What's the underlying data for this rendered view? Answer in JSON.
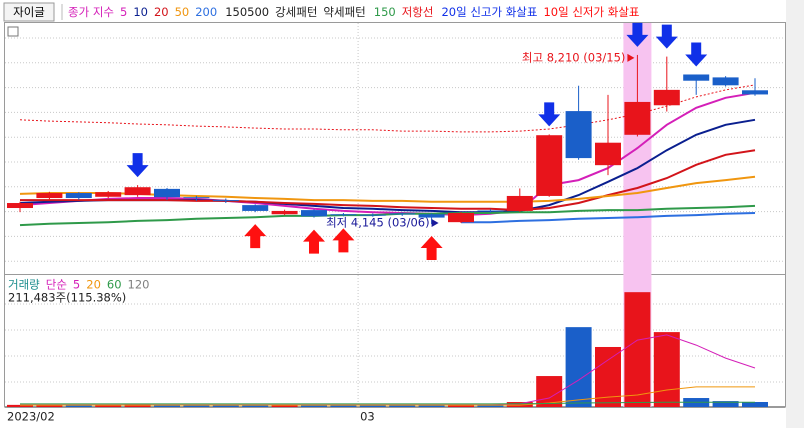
{
  "title": "자이글",
  "chart_data": [
    {
      "type": "candlestick",
      "legend_label": "종가 지수",
      "categories": [
        "2023/02",
        null,
        null,
        null,
        null,
        null,
        null,
        null,
        null,
        null,
        null,
        null,
        "03",
        null,
        null,
        null,
        null,
        null,
        null,
        null,
        null,
        null,
        null,
        null,
        null,
        null
      ],
      "open": [
        4530,
        4770,
        4890,
        4800,
        4840,
        4990,
        4790,
        4720,
        4600,
        4380,
        4480,
        4380,
        4370,
        4400,
        4380,
        4190,
        4470,
        4460,
        4820,
        6860,
        5560,
        6290,
        7000,
        7740,
        7670,
        7360
      ],
      "high": [
        4680,
        4920,
        4910,
        4940,
        5080,
        5010,
        4820,
        4760,
        4620,
        4490,
        4500,
        4410,
        4400,
        4420,
        4400,
        4430,
        4500,
        5000,
        6300,
        7470,
        7250,
        8210,
        8170,
        7740,
        7700,
        7650
      ],
      "low": [
        4430,
        4720,
        4730,
        4760,
        4800,
        4720,
        4700,
        4650,
        4430,
        4360,
        4300,
        4330,
        4320,
        4340,
        4145,
        4170,
        4420,
        4440,
        4800,
        5690,
        5320,
        6250,
        6850,
        7250,
        7450,
        7230
      ],
      "close": [
        4650,
        4890,
        4770,
        4910,
        5030,
        4790,
        4770,
        4700,
        4460,
        4460,
        4330,
        4360,
        4350,
        4380,
        4300,
        4410,
        4460,
        4820,
        6280,
        5730,
        6100,
        7080,
        7370,
        7590,
        7480,
        7260
      ],
      "up_color": "#e8141b",
      "down_color": "#1a5fc9",
      "ylim": [
        3040,
        9290
      ],
      "highlight_color": "#f7c3f0",
      "series": [
        {
          "name": "5",
          "color": "#d41fb8",
          "values": [
            4600,
            4650,
            4700,
            4750,
            4770,
            4770,
            4750,
            4700,
            4650,
            4580,
            4510,
            4460,
            4430,
            4410,
            4390,
            4360,
            4390,
            4480,
            5080,
            5200,
            5490,
            5970,
            6530,
            6940,
            7180,
            7300
          ]
        },
        {
          "name": "10",
          "color": "#0a1f8f",
          "values": [
            4650,
            4680,
            4700,
            4720,
            4720,
            4720,
            4720,
            4700,
            4680,
            4630,
            4580,
            4530,
            4510,
            4480,
            4460,
            4430,
            4430,
            4460,
            4600,
            4840,
            5160,
            5490,
            5920,
            6290,
            6530,
            6650
          ]
        },
        {
          "name": "20",
          "color": "#d2141a",
          "values": [
            4720,
            4720,
            4720,
            4720,
            4720,
            4720,
            4700,
            4700,
            4680,
            4650,
            4630,
            4600,
            4580,
            4550,
            4530,
            4510,
            4510,
            4480,
            4530,
            4650,
            4840,
            5010,
            5250,
            5570,
            5810,
            5920
          ]
        },
        {
          "name": "50",
          "color": "#f0960f",
          "values": [
            4870,
            4890,
            4890,
            4890,
            4870,
            4840,
            4820,
            4800,
            4770,
            4750,
            4720,
            4720,
            4700,
            4700,
            4680,
            4680,
            4680,
            4680,
            4700,
            4750,
            4820,
            4890,
            5010,
            5130,
            5200,
            5280
          ]
        },
        {
          "name": "200",
          "color": "#2d6fe0",
          "values": [
            null,
            null,
            null,
            null,
            null,
            null,
            null,
            null,
            null,
            null,
            null,
            null,
            null,
            null,
            null,
            4190,
            4190,
            4220,
            4240,
            4270,
            4290,
            4310,
            4340,
            4360,
            4390,
            4410
          ]
        },
        {
          "name": "150",
          "color": "#2f9a4a",
          "values": [
            4120,
            4150,
            4170,
            4190,
            4220,
            4240,
            4270,
            4290,
            4310,
            4340,
            4340,
            4360,
            4360,
            4390,
            4390,
            4410,
            4410,
            4430,
            4430,
            4460,
            4480,
            4480,
            4510,
            4530,
            4550,
            4580
          ]
        }
      ],
      "patterns": [
        "150500",
        "강세패턴",
        "약세패턴"
      ],
      "resistance": {
        "name": "저항선",
        "color": "#e8141b",
        "values": [
          6650,
          6620,
          6600,
          6580,
          6550,
          6530,
          6500,
          6480,
          6450,
          6430,
          6430,
          6410,
          6410,
          6380,
          6380,
          6360,
          6360,
          6380,
          6430,
          6530,
          6650,
          6790,
          6980,
          7200,
          7370,
          7490
        ]
      },
      "arrows": [
        {
          "name": "20일 신고가 화살표",
          "color": "#1030e8",
          "direction": "down",
          "values": [
            null,
            null,
            null,
            null,
            5080,
            null,
            null,
            null,
            null,
            null,
            null,
            null,
            null,
            null,
            null,
            null,
            null,
            null,
            6300,
            null,
            null,
            8210,
            8170,
            7740,
            null,
            null
          ]
        },
        {
          "name": "10일 신저가 화살표",
          "color": "#ff1010",
          "direction": "up",
          "values": [
            null,
            null,
            null,
            null,
            null,
            null,
            null,
            null,
            4430,
            null,
            4300,
            4330,
            null,
            null,
            4145,
            null,
            null,
            null,
            null,
            null,
            null,
            null,
            null,
            null,
            null,
            null
          ]
        }
      ],
      "high_label": {
        "text": "최고 8,210 (03/15)",
        "color": "#e8141b"
      },
      "low_label": {
        "text": "최저 4,145 (03/06)",
        "color": "#1a1a9a"
      }
    },
    {
      "type": "volume",
      "legend_label": "거래량",
      "legend_color": "#1f8f8f",
      "ma_label": "단순",
      "values": [
        90000,
        85000,
        80000,
        95000,
        120000,
        100000,
        80000,
        75000,
        90000,
        85000,
        95000,
        80000,
        70000,
        75000,
        80000,
        110000,
        90000,
        210000,
        1310000,
        3380000,
        2540000,
        4860000,
        3170000,
        380000,
        250000,
        211483
      ],
      "info": "211,483주(115.38%)",
      "ylim": [
        0,
        5460000
      ],
      "series": [
        {
          "name": "5",
          "color": "#d41fb8",
          "values": [
            90000,
            90000,
            90000,
            90000,
            90000,
            90000,
            90000,
            90000,
            90000,
            90000,
            90000,
            90000,
            90000,
            90000,
            90000,
            90000,
            90000,
            140000,
            380000,
            1140000,
            1990000,
            2830000,
            3050000,
            2620000,
            2070000,
            1650000
          ]
        },
        {
          "name": "20",
          "color": "#f0960f",
          "values": [
            80000,
            80000,
            80000,
            80000,
            80000,
            80000,
            80000,
            80000,
            80000,
            80000,
            80000,
            80000,
            80000,
            80000,
            80000,
            80000,
            80000,
            80000,
            170000,
            300000,
            420000,
            510000,
            720000,
            850000,
            850000,
            850000
          ]
        },
        {
          "name": "60",
          "color": "#2f9a4a",
          "values": [
            130000,
            130000,
            130000,
            130000,
            130000,
            130000,
            130000,
            130000,
            130000,
            130000,
            130000,
            130000,
            130000,
            130000,
            130000,
            130000,
            130000,
            140000,
            150000,
            170000,
            180000,
            190000,
            200000,
            200000,
            200000,
            200000
          ]
        },
        {
          "name": "120",
          "color": "#808080"
        }
      ]
    }
  ]
}
